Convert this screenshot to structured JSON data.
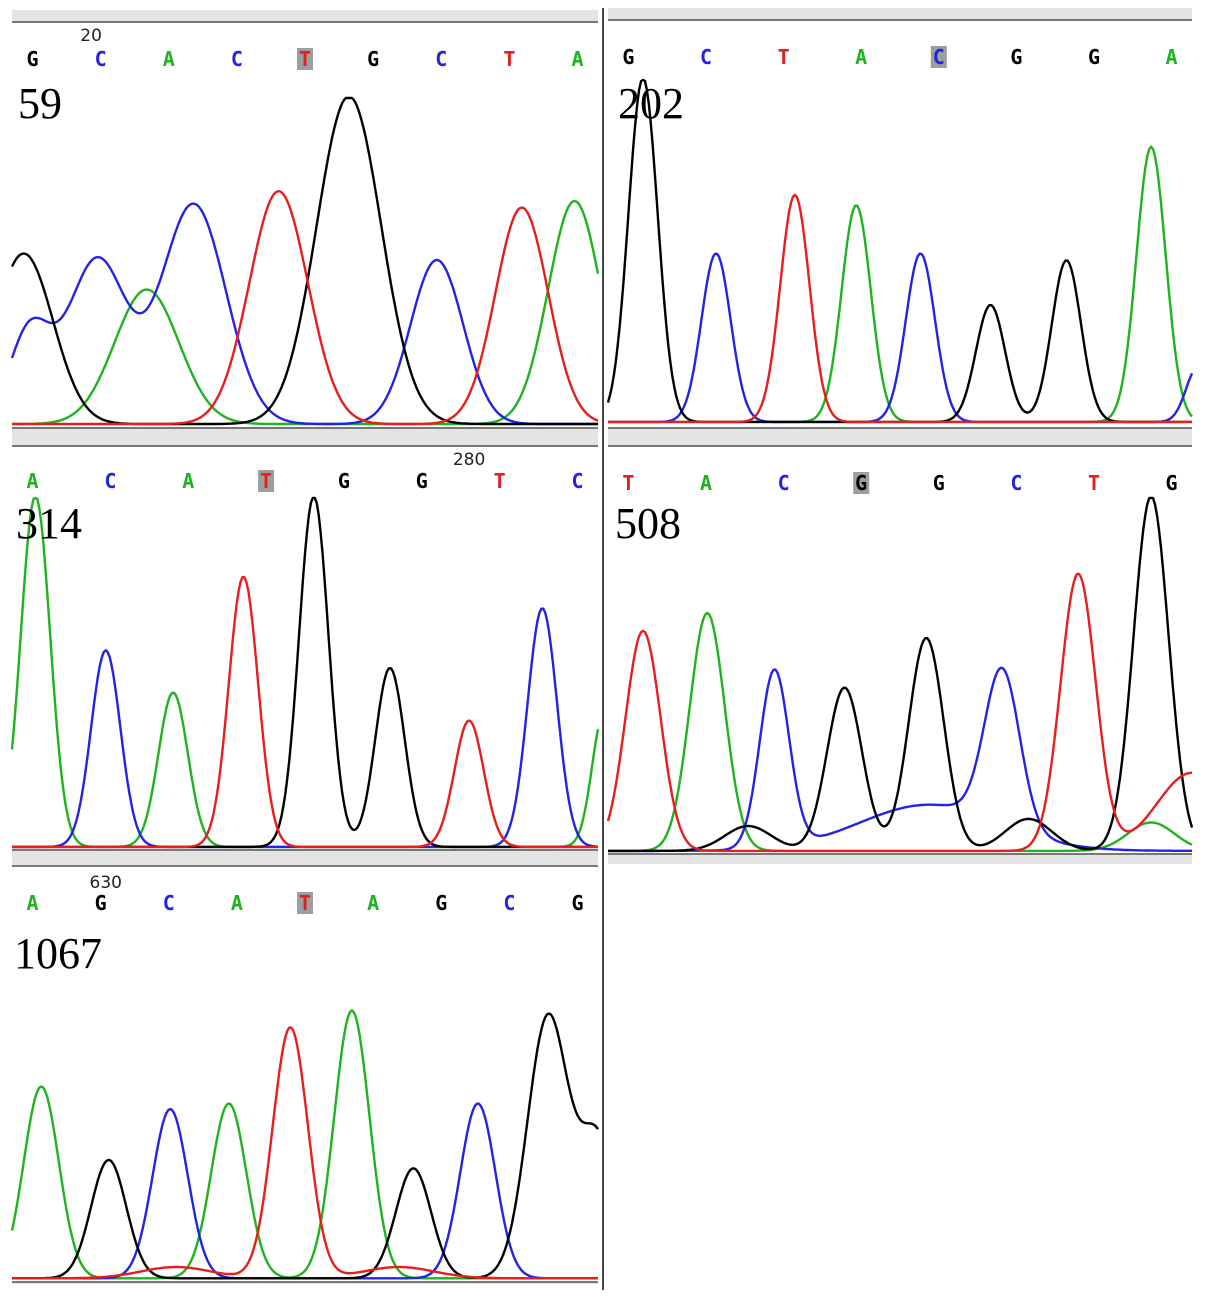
{
  "figure": {
    "colors": {
      "A": "#1fb31f",
      "C": "#2323e6",
      "G": "#000000",
      "T": "#e61e1e",
      "highlight": "#9e9e9e",
      "divider": "#444444",
      "baseline": "#777777",
      "band": "#e4e4e4"
    }
  },
  "chart_data": [
    {
      "type": "line",
      "panel_label": "59",
      "position_marker": "20",
      "bases": [
        "G",
        "C",
        "A",
        "C",
        "T",
        "G",
        "C",
        "T",
        "A"
      ],
      "highlighted_index": 4,
      "peaks": [
        {
          "base": "G",
          "x": 0.02,
          "height": 0.52,
          "width": 0.05
        },
        {
          "base": "C",
          "x": 0.03,
          "height": 0.28,
          "width": 0.035
        },
        {
          "base": "C",
          "x": 0.145,
          "height": 0.5,
          "width": 0.05
        },
        {
          "base": "A",
          "x": 0.23,
          "height": 0.41,
          "width": 0.055
        },
        {
          "base": "C",
          "x": 0.31,
          "height": 0.67,
          "width": 0.055
        },
        {
          "base": "T",
          "x": 0.455,
          "height": 0.71,
          "width": 0.05
        },
        {
          "base": "G",
          "x": 0.575,
          "height": 1.0,
          "width": 0.055
        },
        {
          "base": "C",
          "x": 0.725,
          "height": 0.5,
          "width": 0.045
        },
        {
          "base": "T",
          "x": 0.87,
          "height": 0.66,
          "width": 0.045
        },
        {
          "base": "A",
          "x": 0.96,
          "height": 0.68,
          "width": 0.045
        }
      ]
    },
    {
      "type": "line",
      "panel_label": "202",
      "position_marker": "",
      "bases": [
        "G",
        "C",
        "T",
        "A",
        "C",
        "G",
        "G",
        "A"
      ],
      "highlighted_index": 4,
      "peaks": [
        {
          "base": "G",
          "x": 0.06,
          "height": 1.0,
          "width": 0.025
        },
        {
          "base": "C",
          "x": 0.185,
          "height": 0.49,
          "width": 0.025
        },
        {
          "base": "T",
          "x": 0.32,
          "height": 0.66,
          "width": 0.025
        },
        {
          "base": "A",
          "x": 0.425,
          "height": 0.63,
          "width": 0.025
        },
        {
          "base": "C",
          "x": 0.535,
          "height": 0.49,
          "width": 0.025
        },
        {
          "base": "G",
          "x": 0.655,
          "height": 0.34,
          "width": 0.025
        },
        {
          "base": "G",
          "x": 0.785,
          "height": 0.47,
          "width": 0.025
        },
        {
          "base": "A",
          "x": 0.93,
          "height": 0.8,
          "width": 0.025
        },
        {
          "base": "C",
          "x": 1.01,
          "height": 0.16,
          "width": 0.02
        }
      ]
    },
    {
      "type": "line",
      "panel_label": "314",
      "position_marker": "280",
      "bases": [
        "A",
        "C",
        "A",
        "T",
        "G",
        "G",
        "T",
        "C"
      ],
      "highlighted_index": 3,
      "peaks": [
        {
          "base": "A",
          "x": 0.04,
          "height": 1.0,
          "width": 0.025
        },
        {
          "base": "C",
          "x": 0.16,
          "height": 0.56,
          "width": 0.025
        },
        {
          "base": "A",
          "x": 0.275,
          "height": 0.44,
          "width": 0.025
        },
        {
          "base": "T",
          "x": 0.395,
          "height": 0.77,
          "width": 0.025
        },
        {
          "base": "G",
          "x": 0.515,
          "height": 1.0,
          "width": 0.025
        },
        {
          "base": "G",
          "x": 0.645,
          "height": 0.51,
          "width": 0.025
        },
        {
          "base": "T",
          "x": 0.78,
          "height": 0.36,
          "width": 0.025
        },
        {
          "base": "C",
          "x": 0.905,
          "height": 0.68,
          "width": 0.025
        },
        {
          "base": "A",
          "x": 1.01,
          "height": 0.38,
          "width": 0.02
        }
      ]
    },
    {
      "type": "line",
      "panel_label": "508",
      "position_marker": "",
      "bases": [
        "T",
        "A",
        "C",
        "G",
        "G",
        "C",
        "T",
        "G"
      ],
      "highlighted_index": 3,
      "peaks": [
        {
          "base": "T",
          "x": 0.06,
          "height": 0.62,
          "width": 0.03
        },
        {
          "base": "A",
          "x": 0.17,
          "height": 0.67,
          "width": 0.03
        },
        {
          "base": "C",
          "x": 0.285,
          "height": 0.5,
          "width": 0.025
        },
        {
          "base": "G",
          "x": 0.405,
          "height": 0.46,
          "width": 0.03
        },
        {
          "base": "G",
          "x": 0.545,
          "height": 0.6,
          "width": 0.03
        },
        {
          "base": "C",
          "x": 0.675,
          "height": 0.44,
          "width": 0.03
        },
        {
          "base": "T",
          "x": 0.805,
          "height": 0.78,
          "width": 0.03
        },
        {
          "base": "G",
          "x": 0.93,
          "height": 1.0,
          "width": 0.03
        },
        {
          "base": "T",
          "x": 1.0,
          "height": 0.22,
          "width": 0.06
        },
        {
          "base": "G",
          "x": 0.24,
          "height": 0.07,
          "width": 0.04
        },
        {
          "base": "C",
          "x": 0.55,
          "height": 0.13,
          "width": 0.12
        },
        {
          "base": "G",
          "x": 0.72,
          "height": 0.09,
          "width": 0.04
        },
        {
          "base": "A",
          "x": 0.93,
          "height": 0.08,
          "width": 0.04
        }
      ]
    },
    {
      "type": "line",
      "panel_label": "1067",
      "position_marker": "630",
      "bases": [
        "A",
        "G",
        "C",
        "A",
        "T",
        "A",
        "G",
        "C",
        "G"
      ],
      "highlighted_index": 4,
      "peaks": [
        {
          "base": "A",
          "x": 0.05,
          "height": 0.68,
          "width": 0.03
        },
        {
          "base": "G",
          "x": 0.165,
          "height": 0.42,
          "width": 0.03
        },
        {
          "base": "C",
          "x": 0.27,
          "height": 0.6,
          "width": 0.03
        },
        {
          "base": "A",
          "x": 0.37,
          "height": 0.62,
          "width": 0.03
        },
        {
          "base": "T",
          "x": 0.475,
          "height": 0.89,
          "width": 0.03
        },
        {
          "base": "A",
          "x": 0.58,
          "height": 0.95,
          "width": 0.03
        },
        {
          "base": "G",
          "x": 0.685,
          "height": 0.39,
          "width": 0.03
        },
        {
          "base": "C",
          "x": 0.795,
          "height": 0.62,
          "width": 0.03
        },
        {
          "base": "G",
          "x": 0.915,
          "height": 0.93,
          "width": 0.035
        },
        {
          "base": "G",
          "x": 1.0,
          "height": 0.48,
          "width": 0.03
        },
        {
          "base": "T",
          "x": 0.28,
          "height": 0.04,
          "width": 0.06
        },
        {
          "base": "T",
          "x": 0.66,
          "height": 0.04,
          "width": 0.06
        }
      ]
    }
  ]
}
